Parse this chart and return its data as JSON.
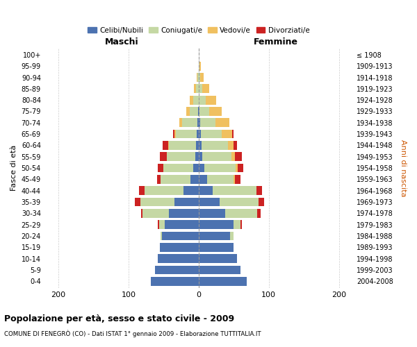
{
  "age_groups": [
    "0-4",
    "5-9",
    "10-14",
    "15-19",
    "20-24",
    "25-29",
    "30-34",
    "35-39",
    "40-44",
    "45-49",
    "50-54",
    "55-59",
    "60-64",
    "65-69",
    "70-74",
    "75-79",
    "80-84",
    "85-89",
    "90-94",
    "95-99",
    "100+"
  ],
  "birth_years": [
    "2004-2008",
    "1999-2003",
    "1994-1998",
    "1989-1993",
    "1984-1988",
    "1979-1983",
    "1974-1978",
    "1969-1973",
    "1964-1968",
    "1959-1963",
    "1954-1958",
    "1949-1953",
    "1944-1948",
    "1939-1943",
    "1934-1938",
    "1929-1933",
    "1924-1928",
    "1919-1923",
    "1914-1918",
    "1909-1913",
    "≤ 1908"
  ],
  "maschi": {
    "celibi": [
      68,
      62,
      58,
      55,
      52,
      48,
      42,
      35,
      22,
      12,
      8,
      5,
      4,
      3,
      2,
      1,
      0,
      0,
      0,
      0,
      0
    ],
    "coniugati": [
      0,
      0,
      0,
      0,
      2,
      8,
      38,
      48,
      55,
      42,
      42,
      40,
      38,
      30,
      22,
      12,
      8,
      4,
      2,
      0,
      0
    ],
    "vedovi": [
      0,
      0,
      0,
      0,
      0,
      0,
      0,
      0,
      0,
      0,
      0,
      0,
      1,
      2,
      4,
      5,
      5,
      3,
      1,
      0,
      0
    ],
    "divorziati": [
      0,
      0,
      0,
      0,
      0,
      2,
      2,
      8,
      8,
      5,
      8,
      10,
      8,
      2,
      0,
      0,
      0,
      0,
      0,
      0,
      0
    ]
  },
  "femmine": {
    "nubili": [
      68,
      60,
      55,
      50,
      45,
      50,
      38,
      30,
      20,
      12,
      8,
      5,
      4,
      3,
      2,
      1,
      0,
      0,
      0,
      0,
      0
    ],
    "coniugate": [
      0,
      0,
      0,
      0,
      5,
      10,
      45,
      55,
      62,
      38,
      45,
      42,
      38,
      30,
      22,
      14,
      10,
      5,
      2,
      1,
      0
    ],
    "vedove": [
      0,
      0,
      0,
      0,
      0,
      0,
      0,
      0,
      0,
      2,
      3,
      5,
      8,
      15,
      20,
      18,
      15,
      10,
      5,
      2,
      0
    ],
    "divorziate": [
      0,
      0,
      0,
      0,
      0,
      2,
      5,
      8,
      8,
      8,
      8,
      10,
      5,
      2,
      0,
      0,
      0,
      0,
      0,
      0,
      0
    ]
  },
  "colors": {
    "celibi": "#4c72b0",
    "coniugati": "#c5d8a4",
    "vedovi": "#f0c060",
    "divorziati": "#cc2222"
  },
  "xlim": 220,
  "title": "Popolazione per età, sesso e stato civile - 2009",
  "subtitle": "COMUNE DI FENEGRÒ (CO) - Dati ISTAT 1° gennaio 2009 - Elaborazione TUTTITALIA.IT",
  "ylabel_left": "Fasce di età",
  "ylabel_right": "Anni di nascita",
  "maschi_label": "Maschi",
  "femmine_label": "Femmine"
}
